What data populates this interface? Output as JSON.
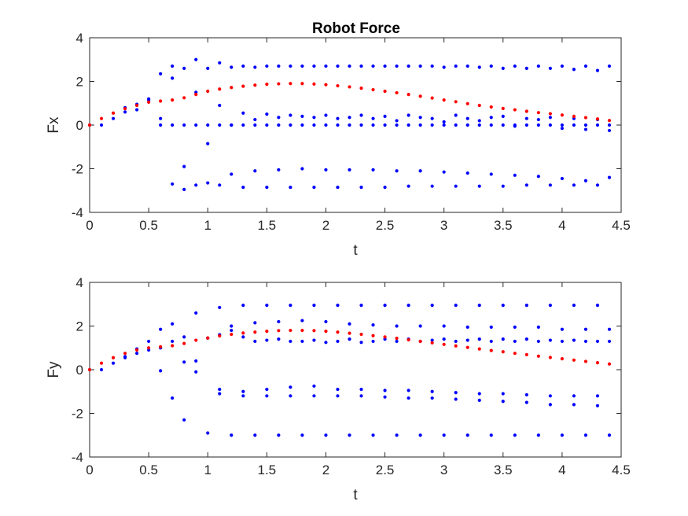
{
  "figure": {
    "title": "Robot Force",
    "colors": {
      "blue": "#0000ff",
      "red": "#ff0000",
      "axis": "#262626",
      "background": "#ffffff"
    }
  },
  "chart_data": [
    {
      "type": "scatter",
      "title": "Robot Force",
      "xlabel": "t",
      "ylabel": "Fx",
      "xlim": [
        0,
        4.5
      ],
      "ylim": [
        -4,
        4
      ],
      "xticks": [
        "0",
        "0.5",
        "1",
        "1.5",
        "2",
        "2.5",
        "3",
        "3.5",
        "4",
        "4.5"
      ],
      "yticks": [
        "-4",
        "-2",
        "0",
        "2",
        "4"
      ],
      "grid": false,
      "series": [
        {
          "color": "#ff0000",
          "x": [
            0,
            0.1,
            0.2,
            0.3,
            0.4,
            0.5,
            0.6,
            0.7,
            0.8,
            0.9,
            1.0,
            1.1,
            1.2,
            1.3,
            1.4,
            1.5,
            1.6,
            1.7,
            1.8,
            1.9,
            2.0,
            2.1,
            2.2,
            2.3,
            2.4,
            2.5,
            2.6,
            2.7,
            2.8,
            2.9,
            3.0,
            3.1,
            3.2,
            3.3,
            3.4,
            3.5,
            3.6,
            3.7,
            3.8,
            3.9,
            4.0,
            4.1,
            4.2,
            4.3,
            4.4
          ],
          "y": [
            0,
            0.3,
            0.55,
            0.75,
            0.9,
            1.05,
            1.1,
            1.15,
            1.25,
            1.4,
            1.55,
            1.65,
            1.72,
            1.78,
            1.83,
            1.87,
            1.89,
            1.9,
            1.9,
            1.88,
            1.85,
            1.8,
            1.75,
            1.69,
            1.62,
            1.55,
            1.48,
            1.4,
            1.32,
            1.24,
            1.15,
            1.07,
            0.98,
            0.9,
            0.83,
            0.76,
            0.7,
            0.63,
            0.57,
            0.52,
            0.46,
            0.4,
            0.34,
            0.28,
            0.21
          ]
        },
        {
          "color": "#0000ff",
          "x": [
            0,
            0.1,
            0.2,
            0.3,
            0.4,
            0.5,
            0.6,
            0.7,
            0.8,
            0.9,
            1.0,
            1.1,
            1.2,
            1.3,
            1.4,
            1.5,
            1.6,
            1.7,
            1.8,
            1.9,
            2.0,
            2.1,
            2.2,
            2.3,
            2.4,
            2.5,
            2.6,
            2.7,
            2.8,
            2.9,
            3.0,
            3.1,
            3.2,
            3.3,
            3.4,
            3.5,
            3.6,
            3.7,
            3.8,
            3.9,
            4.0,
            4.1,
            4.2,
            4.3,
            4.4,
            0.3,
            0.4,
            0.5,
            0.6,
            0.7,
            0.8,
            0.9,
            1.0,
            1.1,
            1.2,
            1.3,
            1.4,
            1.5,
            1.6,
            1.7,
            1.8,
            1.9,
            2.0,
            2.1,
            2.2,
            2.3,
            2.4,
            2.5,
            2.6,
            2.7,
            2.8,
            2.9,
            3.0,
            3.1,
            3.2,
            3.3,
            3.4,
            3.5,
            3.6,
            3.7,
            3.8,
            3.9,
            4.0,
            4.1,
            4.2,
            4.3,
            4.4,
            0.6,
            0.7,
            0.8,
            0.9,
            1.0,
            1.1,
            1.2,
            1.3,
            1.4,
            1.5,
            1.6,
            1.7,
            1.8,
            1.9,
            2.0,
            2.1,
            2.2,
            2.3,
            2.4,
            2.5,
            2.6,
            2.7,
            2.8,
            2.9,
            3.0,
            3.1,
            3.2,
            3.3,
            3.4,
            3.5,
            3.6,
            3.7,
            3.8,
            3.9,
            4.0,
            4.1,
            4.2,
            4.3,
            4.4,
            0.7,
            0.8,
            0.9,
            1.0,
            1.1,
            1.2,
            1.3,
            1.4,
            1.5,
            1.6,
            1.7,
            1.8,
            1.9,
            2.0,
            2.1,
            2.2,
            2.3,
            2.4,
            2.5,
            2.6,
            2.7,
            2.8,
            2.9,
            3.0,
            3.1,
            3.2,
            3.3,
            3.4,
            3.5,
            3.6,
            3.7,
            3.8,
            3.9,
            4.0,
            4.1,
            4.2,
            4.3,
            4.4
          ],
          "y": [
            0,
            0,
            0.3,
            0.6,
            0.7,
            1.15,
            0.3,
            2.7,
            2.6,
            1.5,
            -0.85,
            0.9,
            0.0,
            0.55,
            0.25,
            0.5,
            0.35,
            0.45,
            0.4,
            0.35,
            0.45,
            0.3,
            0.35,
            0.45,
            0.3,
            0.4,
            0.2,
            0.45,
            0.35,
            0.3,
            0.15,
            0.45,
            0.3,
            0.2,
            0.35,
            0.4,
            -0.05,
            0.3,
            0.25,
            0.35,
            -0.15,
            0.3,
            -0.2,
            0.25,
            -0.25,
            0.8,
            0.95,
            1.2,
            0.0,
            2.15,
            -1.9,
            3.0,
            2.6,
            2.85,
            2.65,
            2.7,
            2.65,
            2.7,
            2.7,
            2.7,
            2.7,
            2.7,
            2.7,
            2.7,
            2.7,
            2.7,
            2.7,
            2.7,
            2.7,
            2.7,
            2.7,
            2.7,
            2.65,
            2.7,
            2.7,
            2.65,
            2.7,
            2.6,
            2.7,
            2.6,
            2.7,
            2.6,
            2.7,
            2.55,
            2.7,
            2.5,
            2.7,
            2.35,
            -2.7,
            -2.95,
            -2.75,
            -2.65,
            -2.75,
            -2.25,
            -2.85,
            -2.1,
            -2.85,
            -2.05,
            -2.85,
            -2.0,
            -2.85,
            -2.05,
            -2.85,
            -2.05,
            -2.85,
            -2.05,
            -2.85,
            -2.1,
            -2.8,
            -2.1,
            -2.8,
            -2.15,
            -2.8,
            -2.2,
            -2.8,
            -2.25,
            -2.8,
            -2.3,
            -2.75,
            -2.35,
            -2.75,
            -2.45,
            -2.75,
            -2.55,
            -2.75,
            -2.4,
            0,
            0,
            0,
            0,
            0,
            0,
            0,
            0,
            0,
            0,
            0,
            0,
            0,
            0,
            0,
            0,
            0,
            0,
            0,
            0,
            0,
            0,
            0,
            0,
            0,
            0,
            0,
            0,
            0,
            0,
            0,
            0,
            0,
            0,
            0,
            0,
            0,
            0
          ]
        }
      ]
    },
    {
      "type": "scatter",
      "title": "",
      "xlabel": "t",
      "ylabel": "Fy",
      "xlim": [
        0,
        4.5
      ],
      "ylim": [
        -4,
        4
      ],
      "xticks": [
        "0",
        "0.5",
        "1",
        "1.5",
        "2",
        "2.5",
        "3",
        "3.5",
        "4",
        "4.5"
      ],
      "yticks": [
        "-4",
        "-2",
        "0",
        "2",
        "4"
      ],
      "grid": false,
      "series": [
        {
          "color": "#ff0000",
          "x": [
            0,
            0.1,
            0.2,
            0.3,
            0.4,
            0.5,
            0.6,
            0.7,
            0.8,
            0.9,
            1.0,
            1.1,
            1.2,
            1.3,
            1.4,
            1.5,
            1.6,
            1.7,
            1.8,
            1.9,
            2.0,
            2.1,
            2.2,
            2.3,
            2.4,
            2.5,
            2.6,
            2.7,
            2.8,
            2.9,
            3.0,
            3.1,
            3.2,
            3.3,
            3.4,
            3.5,
            3.6,
            3.7,
            3.8,
            3.9,
            4.0,
            4.1,
            4.2,
            4.3,
            4.4
          ],
          "y": [
            0,
            0.3,
            0.55,
            0.75,
            0.9,
            1.0,
            1.05,
            1.1,
            1.2,
            1.35,
            1.45,
            1.55,
            1.62,
            1.68,
            1.72,
            1.76,
            1.79,
            1.8,
            1.8,
            1.79,
            1.76,
            1.72,
            1.67,
            1.62,
            1.56,
            1.5,
            1.44,
            1.37,
            1.3,
            1.23,
            1.16,
            1.09,
            1.02,
            0.95,
            0.88,
            0.82,
            0.75,
            0.69,
            0.62,
            0.56,
            0.5,
            0.44,
            0.38,
            0.32,
            0.26
          ]
        },
        {
          "color": "#0000ff",
          "x": [
            0,
            0.1,
            0.2,
            0.3,
            0.4,
            0.5,
            0.6,
            0.7,
            0.8,
            0.9,
            1.1,
            1.2,
            1.3,
            1.4,
            1.5,
            1.6,
            1.7,
            1.8,
            1.9,
            2.0,
            2.1,
            2.2,
            2.3,
            2.4,
            2.5,
            2.6,
            2.7,
            2.8,
            2.9,
            3.0,
            3.1,
            3.2,
            3.3,
            3.4,
            3.5,
            3.6,
            3.7,
            3.8,
            3.9,
            4.0,
            4.1,
            4.2,
            4.3,
            4.4,
            0.3,
            0.4,
            0.5,
            0.6,
            0.7,
            0.8,
            0.9,
            1.0,
            1.1,
            1.3,
            1.5,
            1.7,
            1.9,
            2.1,
            2.3,
            2.5,
            2.7,
            2.9,
            3.1,
            3.3,
            3.5,
            3.7,
            3.9,
            4.1,
            4.3,
            0.6,
            0.7,
            0.8,
            0.9,
            1.0,
            1.2,
            1.4,
            1.6,
            1.8,
            2.0,
            2.2,
            2.4,
            2.6,
            2.8,
            3.0,
            3.2,
            3.4,
            3.6,
            3.8,
            4.0,
            4.2,
            4.4,
            1.1,
            1.3,
            1.5,
            1.7,
            1.9,
            2.1,
            2.3,
            2.5,
            2.7,
            2.9,
            3.1,
            3.3,
            3.5,
            3.7,
            3.9,
            4.1,
            4.3,
            1.1,
            1.3,
            1.5,
            1.7,
            1.9,
            2.1,
            2.3,
            2.5,
            2.7,
            2.9,
            3.1,
            3.3,
            3.5,
            3.7,
            3.9,
            4.1,
            4.3,
            1.2,
            1.4,
            1.6,
            1.8,
            2.0,
            2.2,
            2.4,
            2.6,
            2.8,
            3.0,
            3.2,
            3.4,
            3.6,
            3.8,
            4.0,
            4.2,
            4.4
          ],
          "y": [
            0,
            0,
            0.3,
            0.6,
            0.75,
            0.9,
            -0.05,
            -1.3,
            -2.3,
            -0.1,
            2.85,
            2.0,
            1.5,
            1.3,
            1.35,
            1.4,
            1.3,
            1.3,
            1.35,
            1.25,
            1.3,
            1.4,
            1.25,
            1.3,
            1.4,
            1.3,
            1.4,
            1.3,
            1.35,
            1.4,
            1.3,
            1.35,
            1.4,
            1.3,
            1.4,
            1.3,
            1.4,
            1.3,
            1.35,
            1.3,
            1.35,
            1.3,
            1.3,
            1.3,
            0.55,
            0.95,
            1.3,
            1.85,
            2.1,
            1.5,
            2.6,
            1.45,
            1.6,
            2.95,
            2.95,
            2.95,
            2.95,
            2.95,
            2.95,
            2.95,
            2.95,
            2.95,
            2.95,
            2.95,
            2.95,
            2.95,
            2.95,
            2.95,
            2.95,
            1.0,
            1.3,
            0.35,
            0.4,
            -2.9,
            1.8,
            2.15,
            2.2,
            2.25,
            2.2,
            2.1,
            2.05,
            2.0,
            2.0,
            2.0,
            1.95,
            1.95,
            1.95,
            1.95,
            1.85,
            1.85,
            1.85,
            -0.9,
            -1.0,
            -0.9,
            -0.8,
            -0.75,
            -0.9,
            -0.9,
            -0.95,
            -0.95,
            -1.0,
            -1.05,
            -1.1,
            -1.1,
            -1.15,
            -1.2,
            -1.2,
            -1.2,
            -1.1,
            -1.2,
            -1.2,
            -1.2,
            -1.2,
            -1.2,
            -1.2,
            -1.25,
            -1.3,
            -1.3,
            -1.35,
            -1.4,
            -1.45,
            -1.5,
            -1.6,
            -1.6,
            -1.65,
            -3.0,
            -3.0,
            -3.0,
            -3.0,
            -3.0,
            -3.0,
            -3.0,
            -3.0,
            -3.0,
            -3.0,
            -3.0,
            -3.0,
            -3.0,
            -3.0,
            -3.0,
            -3.0,
            -3.0
          ]
        }
      ]
    }
  ]
}
